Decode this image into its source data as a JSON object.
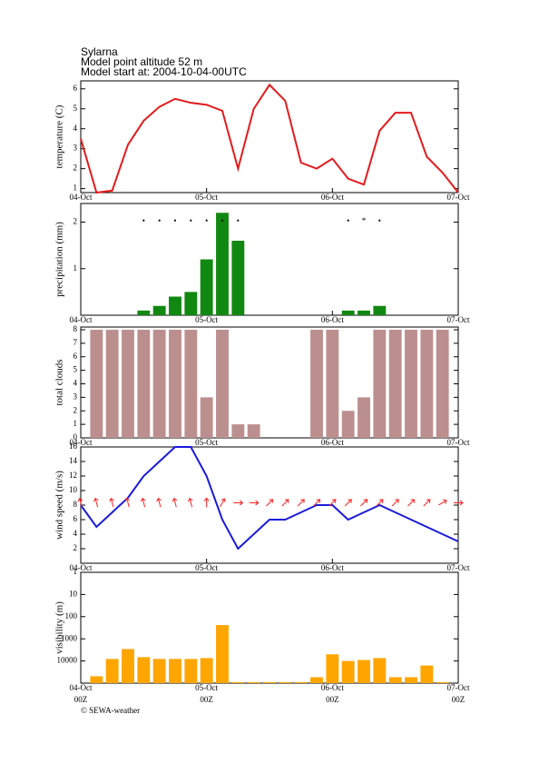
{
  "header": {
    "station": "Sylarna",
    "altitude": "Model point altitude  52 m",
    "start": "Model start at: 2004-10-04-00UTC"
  },
  "footer": "© SEWA-weather",
  "chart_data": [
    {
      "type": "line",
      "ylabel": "temperature (C)",
      "color": "#e41a1c",
      "x": [
        0,
        3,
        6,
        9,
        12,
        15,
        18,
        21,
        24,
        27,
        30,
        33,
        36,
        39,
        42,
        45,
        48,
        51,
        54,
        57,
        60,
        63,
        66,
        69,
        72
      ],
      "values": [
        3.5,
        0.8,
        0.9,
        3.2,
        4.4,
        5.1,
        5.5,
        5.3,
        5.2,
        4.9,
        2.0,
        5.0,
        6.2,
        5.4,
        2.3,
        2.0,
        2.5,
        1.5,
        1.2,
        3.9,
        4.8,
        4.8,
        2.6,
        1.8,
        0.8
      ],
      "xlim": [
        0,
        72
      ],
      "xticks": [
        {
          "value": 0,
          "label": "04-Oct"
        },
        {
          "value": 24,
          "label": "05-Oct"
        },
        {
          "value": 48,
          "label": "06-Oct"
        },
        {
          "value": 72,
          "label": "07-Oct"
        }
      ],
      "ylim": [
        0.8,
        6.4
      ],
      "yticks": [
        1,
        2,
        3,
        4,
        5,
        6
      ]
    },
    {
      "type": "bar",
      "ylabel": "precipitation (mm)",
      "color": "#118811",
      "x": [
        12,
        15,
        18,
        21,
        24,
        27,
        30,
        51,
        54,
        57
      ],
      "values": [
        0.1,
        0.2,
        0.4,
        0.5,
        1.2,
        2.2,
        1.6,
        0.1,
        0.1,
        0.2
      ],
      "symbols": [
        "•",
        "•",
        "•",
        "•",
        "•",
        "•",
        "•",
        "•",
        "*",
        "•"
      ],
      "xlim": [
        0,
        72
      ],
      "xticks": [
        {
          "value": 0,
          "label": "04-Oct"
        },
        {
          "value": 24,
          "label": "05-Oct"
        },
        {
          "value": 48,
          "label": "06-Oct"
        },
        {
          "value": 72,
          "label": "07-Oct"
        }
      ],
      "ylim": [
        0,
        2.4
      ],
      "yticks": [
        1,
        2
      ]
    },
    {
      "type": "bar",
      "ylabel": "total clouds",
      "color": "#bc8f8f",
      "x": [
        3,
        6,
        9,
        12,
        15,
        18,
        21,
        24,
        27,
        30,
        33,
        36,
        39,
        42,
        45,
        48,
        51,
        54,
        57,
        60,
        63,
        66,
        69
      ],
      "values": [
        8,
        8,
        8,
        8,
        8,
        8,
        8,
        3,
        8,
        1,
        1,
        0,
        0,
        0,
        8,
        8,
        2,
        3,
        8,
        8,
        8,
        8,
        8
      ],
      "xlim": [
        0,
        72
      ],
      "xticks": [
        {
          "value": 0,
          "label": "04-Oct"
        },
        {
          "value": 24,
          "label": "05-Oct"
        },
        {
          "value": 48,
          "label": "06-Oct"
        },
        {
          "value": 72,
          "label": "07-Oct"
        }
      ],
      "ylim": [
        0,
        8.2
      ],
      "yticks": [
        0,
        1,
        2,
        3,
        4,
        5,
        6,
        7,
        8
      ]
    },
    {
      "type": "line",
      "ylabel": "wind speed (m/s)",
      "color": "#1a1adc",
      "x": [
        0,
        3,
        6,
        9,
        12,
        15,
        18,
        21,
        24,
        27,
        30,
        33,
        36,
        39,
        42,
        45,
        48,
        51,
        54,
        57,
        60,
        63,
        66,
        69,
        72
      ],
      "values": [
        8,
        5,
        7,
        9,
        12,
        14,
        16,
        16,
        12,
        6,
        2,
        4,
        6,
        6,
        7,
        8,
        8,
        6,
        7,
        8,
        7,
        6,
        5,
        4,
        3
      ],
      "direction": [
        345,
        345,
        345,
        345,
        345,
        345,
        345,
        345,
        0,
        30,
        90,
        90,
        45,
        45,
        45,
        45,
        45,
        45,
        45,
        45,
        45,
        45,
        45,
        60,
        90
      ],
      "direction_color": "#ff2020",
      "xlim": [
        0,
        72
      ],
      "xticks": [
        {
          "value": 0,
          "label": "04-Oct"
        },
        {
          "value": 24,
          "label": "05-Oct"
        },
        {
          "value": 48,
          "label": "06-Oct"
        },
        {
          "value": 72,
          "label": "07-Oct"
        }
      ],
      "ylim": [
        0,
        16
      ],
      "yticks": [
        2,
        4,
        6,
        8,
        10,
        12,
        14,
        16
      ]
    },
    {
      "type": "bar",
      "ylabel": "visibility (m)",
      "color": "#ffa500",
      "log_y": true,
      "y_inverted": true,
      "x": [
        3,
        6,
        9,
        12,
        15,
        18,
        21,
        24,
        27,
        30,
        33,
        36,
        39,
        42,
        45,
        48,
        51,
        54,
        57,
        60,
        63,
        66,
        69
      ],
      "values": [
        49000,
        8100,
        2900,
        6700,
        8100,
        8100,
        8100,
        7400,
        240,
        90000,
        90000,
        90000,
        90000,
        90000,
        54000,
        5000,
        10000,
        9000,
        7400,
        54000,
        54000,
        16000,
        90000
      ],
      "xlim": [
        0,
        72
      ],
      "xticks": [
        {
          "value": 0,
          "label": "04-Oct"
        },
        {
          "value": 24,
          "label": "05-Oct"
        },
        {
          "value": 48,
          "label": "06-Oct"
        },
        {
          "value": 72,
          "label": "07-Oct"
        }
      ],
      "xtick_sublabels": [
        "00Z",
        "00Z",
        "00Z",
        "00Z"
      ],
      "ylim": [
        1,
        100000
      ],
      "yticks": [
        1,
        10,
        100,
        1000,
        10000
      ]
    }
  ]
}
